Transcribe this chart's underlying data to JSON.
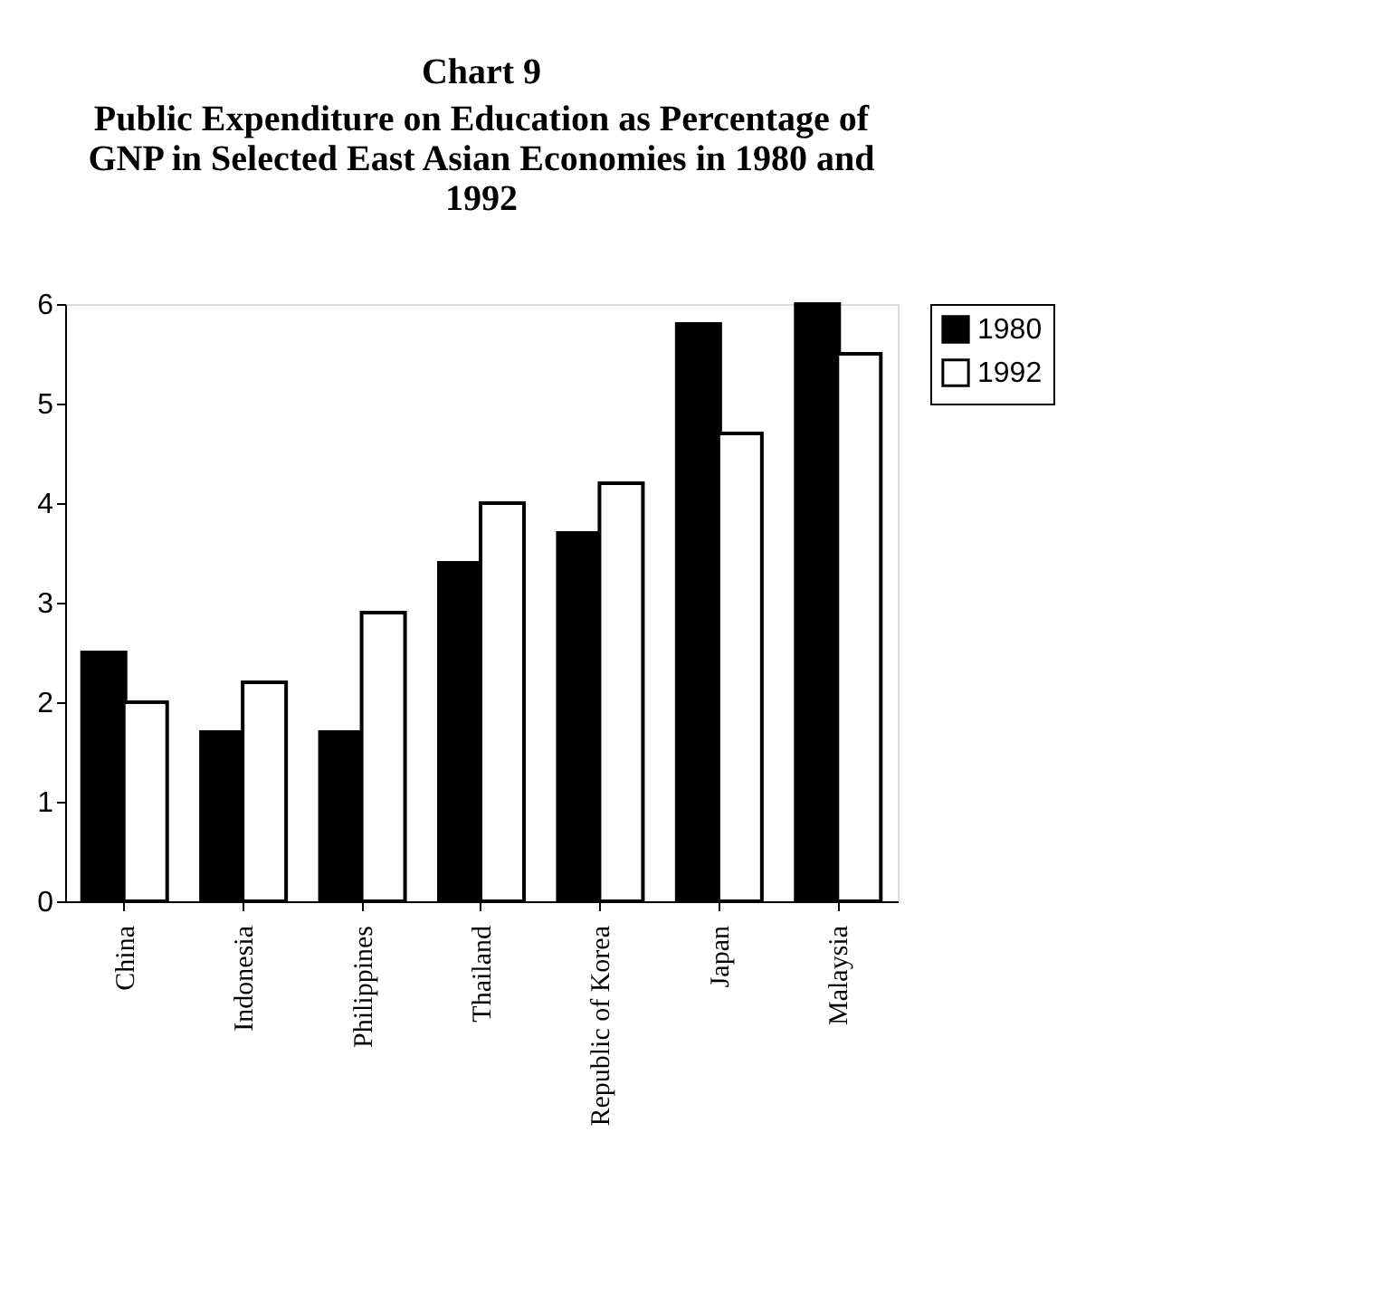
{
  "chart_data": {
    "type": "bar",
    "title": "Chart 9",
    "subtitle": "Public Expenditure on Education as Percentage of GNP in Selected East Asian Economies in 1980 and 1992",
    "categories": [
      "China",
      "Indonesia",
      "Philippines",
      "Thailand",
      "Republic of Korea",
      "Japan",
      "Malaysia"
    ],
    "series": [
      {
        "name": "1980",
        "color": "#000000",
        "values": [
          2.5,
          1.7,
          1.7,
          3.4,
          3.7,
          5.8,
          6.0
        ]
      },
      {
        "name": "1992",
        "color": "#ffffff",
        "values": [
          2.0,
          2.2,
          2.9,
          4.0,
          4.2,
          4.7,
          5.5
        ]
      }
    ],
    "ylim": [
      0,
      6
    ],
    "yticks": [
      0,
      1,
      2,
      3,
      4,
      5,
      6
    ],
    "grid": false,
    "legend": "right"
  }
}
